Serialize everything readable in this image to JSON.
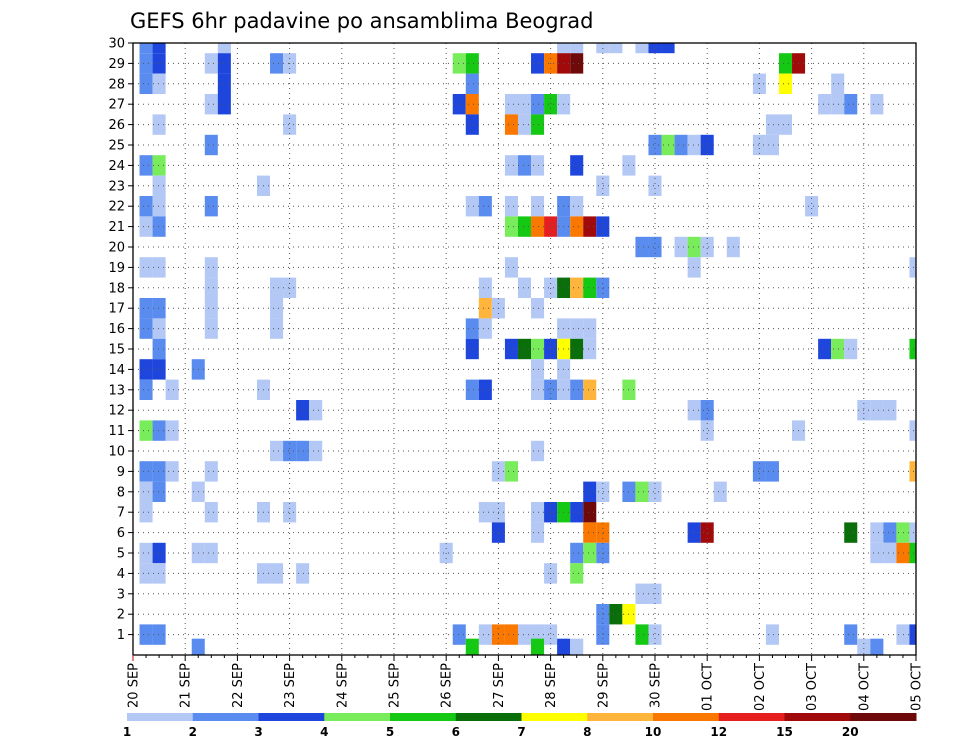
{
  "chart_data": {
    "type": "heatmap",
    "title": "GEFS 6hr padavine po ansamblima Beograd",
    "xlabel": "",
    "ylabel": "",
    "x_tick_labels": [
      "20 SEP",
      "21 SEP",
      "22 SEP",
      "23 SEP",
      "24 SEP",
      "25 SEP",
      "26 SEP",
      "27 SEP",
      "28 SEP",
      "29 SEP",
      "30 SEP",
      "01 OCT",
      "02 OCT",
      "03 OCT",
      "04 OCT",
      "05 OCT"
    ],
    "x_range_steps_6h": [
      0,
      60
    ],
    "y_range_members": [
      1,
      30
    ],
    "grid": true,
    "legend_placement": "bottom",
    "color_scale": {
      "bounds": [
        1,
        2,
        3,
        4,
        5,
        6,
        7,
        8,
        10,
        12,
        15,
        20
      ],
      "bound_labels": [
        "1",
        "2",
        "3",
        "4",
        "5",
        "6",
        "7",
        "8",
        "10",
        "12",
        "15",
        "20"
      ],
      "colors": [
        "#b4c8f5",
        "#5a8cf0",
        "#1e46dc",
        "#78ec5a",
        "#14c814",
        "#0a6e0a",
        "#ffff00",
        "#ffb43c",
        "#fa7800",
        "#e61e1e",
        "#a00a0a",
        "#6e0a0a"
      ]
    },
    "cells": [
      [
        1,
        30,
        2
      ],
      [
        2,
        30,
        3
      ],
      [
        7,
        30,
        1
      ],
      [
        33,
        30,
        1
      ],
      [
        34,
        30,
        1
      ],
      [
        36,
        30,
        1
      ],
      [
        37,
        30,
        1
      ],
      [
        39,
        30,
        1
      ],
      [
        40,
        30,
        3
      ],
      [
        41,
        30,
        3
      ],
      [
        1,
        29,
        2
      ],
      [
        2,
        29,
        3
      ],
      [
        6,
        29,
        1
      ],
      [
        7,
        29,
        3
      ],
      [
        11,
        29,
        2
      ],
      [
        12,
        29,
        1
      ],
      [
        25,
        29,
        4
      ],
      [
        26,
        29,
        5
      ],
      [
        31,
        29,
        3
      ],
      [
        32,
        29,
        10
      ],
      [
        33,
        29,
        15
      ],
      [
        34,
        29,
        20
      ],
      [
        50,
        29,
        5
      ],
      [
        51,
        29,
        15
      ],
      [
        1,
        28,
        2
      ],
      [
        2,
        28,
        1
      ],
      [
        7,
        28,
        3
      ],
      [
        26,
        28,
        2
      ],
      [
        48,
        28,
        1
      ],
      [
        50,
        28,
        7
      ],
      [
        54,
        28,
        1
      ],
      [
        6,
        27,
        1
      ],
      [
        7,
        27,
        3
      ],
      [
        25,
        27,
        3
      ],
      [
        26,
        27,
        10
      ],
      [
        29,
        27,
        1
      ],
      [
        30,
        27,
        1
      ],
      [
        31,
        27,
        2
      ],
      [
        32,
        27,
        5
      ],
      [
        33,
        27,
        1
      ],
      [
        53,
        27,
        1
      ],
      [
        54,
        27,
        1
      ],
      [
        55,
        27,
        2
      ],
      [
        57,
        27,
        1
      ],
      [
        2,
        26,
        1
      ],
      [
        12,
        26,
        1
      ],
      [
        26,
        26,
        3
      ],
      [
        29,
        26,
        10
      ],
      [
        30,
        26,
        1
      ],
      [
        31,
        26,
        5
      ],
      [
        49,
        26,
        1
      ],
      [
        50,
        26,
        1
      ],
      [
        6,
        25,
        2
      ],
      [
        40,
        25,
        2
      ],
      [
        41,
        25,
        4
      ],
      [
        42,
        25,
        2
      ],
      [
        43,
        25,
        1
      ],
      [
        44,
        25,
        3
      ],
      [
        48,
        25,
        1
      ],
      [
        49,
        25,
        1
      ],
      [
        1,
        24,
        2
      ],
      [
        2,
        24,
        4
      ],
      [
        29,
        24,
        1
      ],
      [
        30,
        24,
        2
      ],
      [
        31,
        24,
        1
      ],
      [
        34,
        24,
        3
      ],
      [
        38,
        24,
        1
      ],
      [
        2,
        23,
        1
      ],
      [
        10,
        23,
        1
      ],
      [
        36,
        23,
        1
      ],
      [
        40,
        23,
        1
      ],
      [
        1,
        22,
        2
      ],
      [
        2,
        22,
        1
      ],
      [
        6,
        22,
        2
      ],
      [
        26,
        22,
        1
      ],
      [
        27,
        22,
        2
      ],
      [
        29,
        22,
        1
      ],
      [
        31,
        22,
        1
      ],
      [
        33,
        22,
        2
      ],
      [
        34,
        22,
        1
      ],
      [
        52,
        22,
        1
      ],
      [
        1,
        21,
        1
      ],
      [
        2,
        21,
        2
      ],
      [
        29,
        21,
        4
      ],
      [
        30,
        21,
        5
      ],
      [
        31,
        21,
        10
      ],
      [
        32,
        21,
        12
      ],
      [
        33,
        21,
        2
      ],
      [
        34,
        21,
        10
      ],
      [
        35,
        21,
        15
      ],
      [
        36,
        21,
        3
      ],
      [
        39,
        20,
        2
      ],
      [
        40,
        20,
        2
      ],
      [
        42,
        20,
        1
      ],
      [
        43,
        20,
        4
      ],
      [
        44,
        20,
        1
      ],
      [
        46,
        20,
        1
      ],
      [
        1,
        19,
        1
      ],
      [
        2,
        19,
        1
      ],
      [
        6,
        19,
        1
      ],
      [
        29,
        19,
        1
      ],
      [
        43,
        19,
        1
      ],
      [
        60,
        19,
        1
      ],
      [
        6,
        18,
        1
      ],
      [
        11,
        18,
        1
      ],
      [
        12,
        18,
        1
      ],
      [
        27,
        18,
        1
      ],
      [
        30,
        18,
        1
      ],
      [
        32,
        18,
        1
      ],
      [
        33,
        18,
        6
      ],
      [
        34,
        18,
        9
      ],
      [
        35,
        18,
        5
      ],
      [
        36,
        18,
        2
      ],
      [
        1,
        17,
        2
      ],
      [
        2,
        17,
        2
      ],
      [
        6,
        17,
        1
      ],
      [
        11,
        17,
        1
      ],
      [
        27,
        17,
        9
      ],
      [
        28,
        17,
        1
      ],
      [
        31,
        17,
        1
      ],
      [
        1,
        16,
        2
      ],
      [
        2,
        16,
        1
      ],
      [
        6,
        16,
        1
      ],
      [
        11,
        16,
        1
      ],
      [
        26,
        16,
        2
      ],
      [
        27,
        16,
        1
      ],
      [
        33,
        16,
        1
      ],
      [
        34,
        16,
        1
      ],
      [
        35,
        16,
        1
      ],
      [
        2,
        15,
        2
      ],
      [
        26,
        15,
        3
      ],
      [
        29,
        15,
        3
      ],
      [
        30,
        15,
        6
      ],
      [
        31,
        15,
        4
      ],
      [
        32,
        15,
        3
      ],
      [
        33,
        15,
        7
      ],
      [
        34,
        15,
        6
      ],
      [
        35,
        15,
        1
      ],
      [
        53,
        15,
        3
      ],
      [
        54,
        15,
        4
      ],
      [
        55,
        15,
        1
      ],
      [
        60,
        15,
        5
      ],
      [
        1,
        14,
        3
      ],
      [
        2,
        14,
        3
      ],
      [
        5,
        14,
        2
      ],
      [
        31,
        14,
        1
      ],
      [
        33,
        14,
        1
      ],
      [
        1,
        13,
        2
      ],
      [
        3,
        13,
        1
      ],
      [
        10,
        13,
        1
      ],
      [
        26,
        13,
        2
      ],
      [
        27,
        13,
        3
      ],
      [
        31,
        13,
        1
      ],
      [
        32,
        13,
        2
      ],
      [
        33,
        13,
        1
      ],
      [
        34,
        13,
        2
      ],
      [
        35,
        13,
        9
      ],
      [
        38,
        13,
        4
      ],
      [
        13,
        12,
        3
      ],
      [
        14,
        12,
        1
      ],
      [
        43,
        12,
        1
      ],
      [
        44,
        12,
        2
      ],
      [
        56,
        12,
        1
      ],
      [
        57,
        12,
        1
      ],
      [
        58,
        12,
        1
      ],
      [
        1,
        11,
        4
      ],
      [
        2,
        11,
        2
      ],
      [
        3,
        11,
        1
      ],
      [
        44,
        11,
        1
      ],
      [
        51,
        11,
        1
      ],
      [
        60,
        11,
        1
      ],
      [
        11,
        10,
        1
      ],
      [
        12,
        10,
        2
      ],
      [
        13,
        10,
        2
      ],
      [
        14,
        10,
        1
      ],
      [
        31,
        10,
        1
      ],
      [
        1,
        9,
        2
      ],
      [
        2,
        9,
        2
      ],
      [
        3,
        9,
        1
      ],
      [
        6,
        9,
        1
      ],
      [
        28,
        9,
        1
      ],
      [
        29,
        9,
        4
      ],
      [
        48,
        9,
        2
      ],
      [
        49,
        9,
        2
      ],
      [
        60,
        9,
        9
      ],
      [
        1,
        8,
        1
      ],
      [
        2,
        8,
        2
      ],
      [
        5,
        8,
        1
      ],
      [
        35,
        8,
        3
      ],
      [
        36,
        8,
        1
      ],
      [
        38,
        8,
        2
      ],
      [
        39,
        8,
        4
      ],
      [
        40,
        8,
        1
      ],
      [
        45,
        8,
        1
      ],
      [
        1,
        7,
        1
      ],
      [
        6,
        7,
        1
      ],
      [
        10,
        7,
        1
      ],
      [
        12,
        7,
        1
      ],
      [
        27,
        7,
        1
      ],
      [
        28,
        7,
        1
      ],
      [
        31,
        7,
        1
      ],
      [
        32,
        7,
        3
      ],
      [
        33,
        7,
        5
      ],
      [
        34,
        7,
        3
      ],
      [
        35,
        7,
        20
      ],
      [
        28,
        6,
        3
      ],
      [
        31,
        6,
        1
      ],
      [
        35,
        6,
        10
      ],
      [
        36,
        6,
        10
      ],
      [
        43,
        6,
        3
      ],
      [
        44,
        6,
        15
      ],
      [
        55,
        6,
        6
      ],
      [
        57,
        6,
        1
      ],
      [
        58,
        6,
        2
      ],
      [
        59,
        6,
        4
      ],
      [
        60,
        6,
        1
      ],
      [
        1,
        5,
        1
      ],
      [
        2,
        5,
        3
      ],
      [
        5,
        5,
        1
      ],
      [
        6,
        5,
        1
      ],
      [
        24,
        5,
        1
      ],
      [
        34,
        5,
        2
      ],
      [
        35,
        5,
        4
      ],
      [
        36,
        5,
        2
      ],
      [
        57,
        5,
        1
      ],
      [
        58,
        5,
        1
      ],
      [
        59,
        5,
        10
      ],
      [
        60,
        5,
        5
      ],
      [
        1,
        4,
        1
      ],
      [
        2,
        4,
        1
      ],
      [
        10,
        4,
        1
      ],
      [
        11,
        4,
        1
      ],
      [
        13,
        4,
        1
      ],
      [
        32,
        4,
        1
      ],
      [
        34,
        4,
        4
      ],
      [
        39,
        3,
        1
      ],
      [
        40,
        3,
        1
      ],
      [
        36,
        2,
        2
      ],
      [
        37,
        2,
        6
      ],
      [
        38,
        2,
        7
      ],
      [
        1,
        1,
        2
      ],
      [
        2,
        1,
        2
      ],
      [
        25,
        1,
        2
      ],
      [
        27,
        1,
        1
      ],
      [
        28,
        1,
        10
      ],
      [
        29,
        1,
        10
      ],
      [
        30,
        1,
        1
      ],
      [
        31,
        1,
        1
      ],
      [
        32,
        1,
        1
      ],
      [
        36,
        1,
        2
      ],
      [
        39,
        1,
        5
      ],
      [
        40,
        1,
        1
      ],
      [
        49,
        1,
        1
      ],
      [
        55,
        1,
        2
      ],
      [
        59,
        1,
        1
      ],
      [
        60,
        1,
        3
      ],
      [
        5,
        0.3,
        2
      ],
      [
        26,
        0.3,
        5
      ],
      [
        31,
        0.3,
        5
      ],
      [
        33,
        0.3,
        3
      ],
      [
        34,
        0.3,
        1
      ],
      [
        56,
        0.3,
        1
      ],
      [
        57,
        0.3,
        2
      ]
    ]
  }
}
